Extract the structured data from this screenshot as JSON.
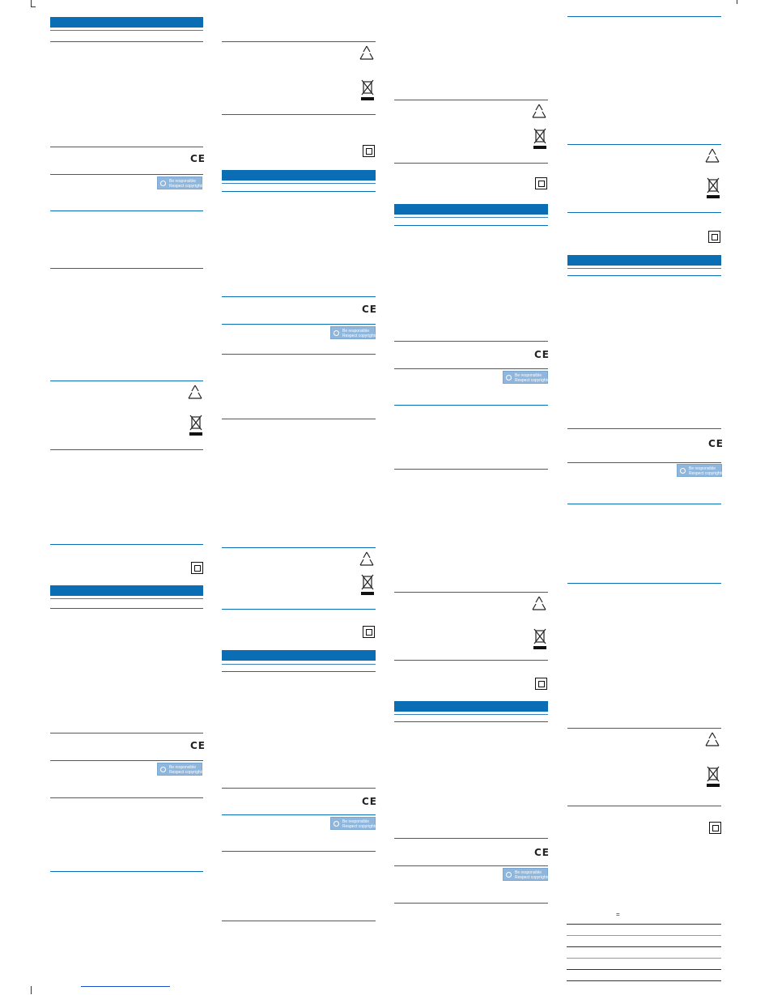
{
  "badge": {
    "line1": "Be responsible",
    "line2": "Respect copyrights"
  },
  "ce_mark": "CE",
  "footer_symbol": "="
}
